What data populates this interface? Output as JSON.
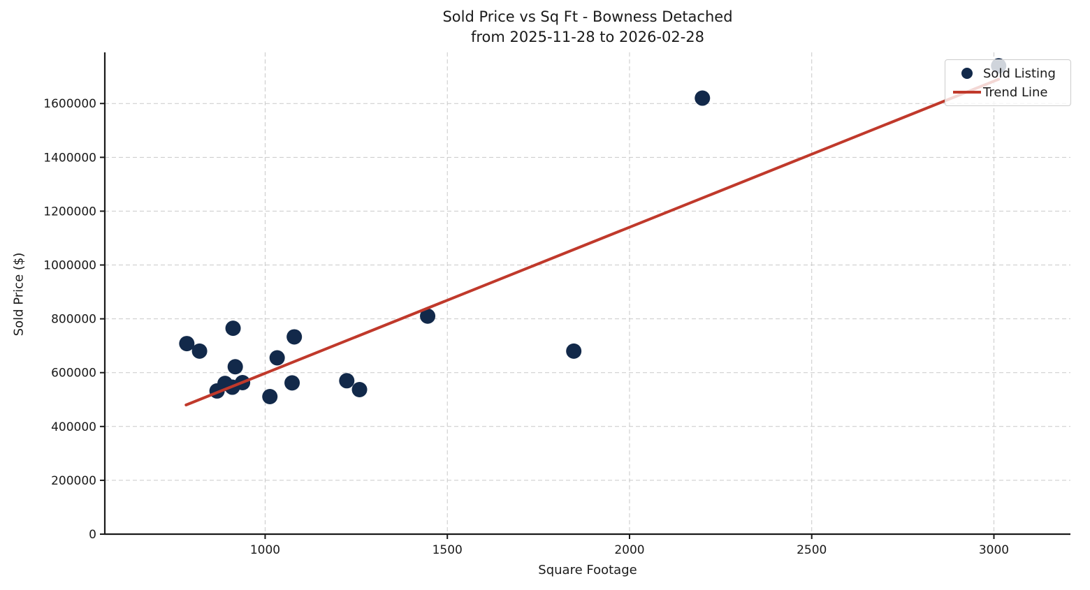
{
  "title": {
    "line1": "Sold Price vs Sq Ft - Bowness Detached",
    "line2": "from 2025-11-28 to 2026-02-28"
  },
  "colors": {
    "point": "#12294a",
    "trend": "#c0392b",
    "grid": "#c9c9c9",
    "axis": "#1a1a1a"
  },
  "chart_data": {
    "type": "scatter",
    "title": "Sold Price vs Sq Ft - Bowness Detached from 2025-11-28 to 2026-02-28",
    "xlabel": "Square Footage",
    "ylabel": "Sold Price ($)",
    "xlim": [
      560,
      3210
    ],
    "ylim": [
      0,
      1790000
    ],
    "xticks": [
      1000,
      1500,
      2000,
      2500,
      3000
    ],
    "yticks": [
      0,
      200000,
      400000,
      600000,
      800000,
      1000000,
      1200000,
      1400000,
      1600000
    ],
    "grid": true,
    "legend": {
      "position": "upper right",
      "entries": [
        {
          "label": "Sold Listing",
          "marker": "dot",
          "color": "#12294a"
        },
        {
          "label": "Trend Line",
          "marker": "line",
          "color": "#c0392b"
        }
      ]
    },
    "series": [
      {
        "name": "Sold Listing",
        "type": "scatter",
        "color": "#12294a",
        "marker_radius": 11,
        "points": [
          [
            785,
            708000
          ],
          [
            820,
            680000
          ],
          [
            868,
            532000
          ],
          [
            890,
            560000
          ],
          [
            910,
            546000
          ],
          [
            912,
            765000
          ],
          [
            918,
            622000
          ],
          [
            938,
            563000
          ],
          [
            1013,
            511000
          ],
          [
            1033,
            655000
          ],
          [
            1074,
            562000
          ],
          [
            1080,
            733000
          ],
          [
            1224,
            570000
          ],
          [
            1259,
            537000
          ],
          [
            1446,
            810000
          ],
          [
            1847,
            680000
          ],
          [
            2200,
            1620000
          ],
          [
            3013,
            1740000
          ]
        ]
      },
      {
        "name": "Trend Line",
        "type": "line",
        "color": "#c0392b",
        "line_width": 4,
        "points": [
          [
            783,
            480000
          ],
          [
            3013,
            1690000
          ]
        ]
      }
    ]
  }
}
